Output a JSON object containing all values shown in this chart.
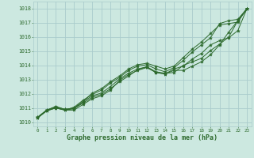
{
  "title": "Graphe pression niveau de la mer (hPa)",
  "bg_color": "#cce8e0",
  "grid_color": "#aacccc",
  "line_color": "#2d6a2d",
  "marker_color": "#2d6a2d",
  "label_color": "#2d6a2d",
  "xlim": [
    -0.5,
    23.5
  ],
  "ylim": [
    1009.7,
    1018.5
  ],
  "yticks": [
    1010,
    1011,
    1012,
    1013,
    1014,
    1015,
    1016,
    1017,
    1018
  ],
  "xticks": [
    0,
    1,
    2,
    3,
    4,
    5,
    6,
    7,
    8,
    9,
    10,
    11,
    12,
    13,
    14,
    15,
    16,
    17,
    18,
    19,
    20,
    21,
    22,
    23
  ],
  "series": [
    [
      1010.35,
      1010.85,
      1011.1,
      1010.9,
      1011.0,
      1011.45,
      1011.85,
      1012.05,
      1012.5,
      1013.05,
      1013.45,
      1013.75,
      1013.9,
      1013.55,
      1013.45,
      1013.5,
      1014.0,
      1014.25,
      1014.5,
      1015.05,
      1015.5,
      1016.0,
      1017.15,
      1018.0
    ],
    [
      1010.35,
      1010.85,
      1011.1,
      1010.9,
      1010.95,
      1011.35,
      1011.75,
      1011.95,
      1012.35,
      1012.85,
      1013.25,
      1013.7,
      1013.9,
      1013.5,
      1013.4,
      1013.65,
      1013.65,
      1013.95,
      1014.25,
      1014.75,
      1015.45,
      1016.35,
      1017.15,
      1018.0
    ],
    [
      1010.3,
      1010.8,
      1011.05,
      1010.85,
      1010.85,
      1011.25,
      1011.65,
      1011.85,
      1012.25,
      1012.95,
      1013.35,
      1013.65,
      1013.85,
      1013.5,
      1013.4,
      1013.75,
      1013.95,
      1014.45,
      1014.85,
      1015.45,
      1015.75,
      1015.95,
      1016.45,
      1018.0
    ],
    [
      1010.3,
      1010.8,
      1011.0,
      1010.85,
      1011.05,
      1011.55,
      1011.95,
      1012.25,
      1012.75,
      1013.15,
      1013.65,
      1013.95,
      1014.05,
      1013.75,
      1013.55,
      1013.85,
      1014.35,
      1014.95,
      1015.45,
      1015.95,
      1016.95,
      1017.15,
      1017.25,
      1018.0
    ],
    [
      1010.3,
      1010.8,
      1011.0,
      1010.85,
      1010.95,
      1011.45,
      1012.05,
      1012.35,
      1012.85,
      1013.25,
      1013.75,
      1014.05,
      1014.15,
      1013.95,
      1013.75,
      1013.95,
      1014.55,
      1015.15,
      1015.65,
      1016.25,
      1016.85,
      1016.95,
      1017.05,
      1018.0
    ]
  ]
}
